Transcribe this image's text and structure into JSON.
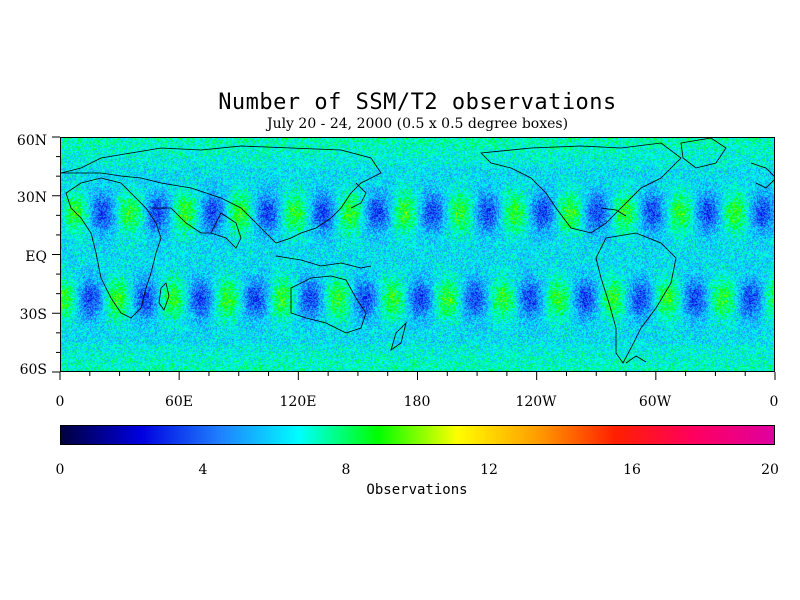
{
  "title": "Number of SSM/T2 observations",
  "subtitle": "July 20 - 24, 2000 (0.5 x 0.5 degree boxes)",
  "map": {
    "lat_labels": [
      "60N",
      "30N",
      "EQ",
      "30S",
      "60S"
    ],
    "lon_labels": [
      "0",
      "60E",
      "120E",
      "180",
      "120W",
      "60W",
      "0"
    ]
  },
  "colorbar": {
    "title": "Observations",
    "tick_labels": [
      "0",
      "4",
      "8",
      "12",
      "16",
      "20"
    ],
    "range": [
      0,
      20
    ],
    "colors": [
      "#000040",
      "#0000e0",
      "#2080ff",
      "#00ffff",
      "#00ff00",
      "#ffff00",
      "#ffa000",
      "#ff2000",
      "#ff0060",
      "#e000a0"
    ]
  }
}
